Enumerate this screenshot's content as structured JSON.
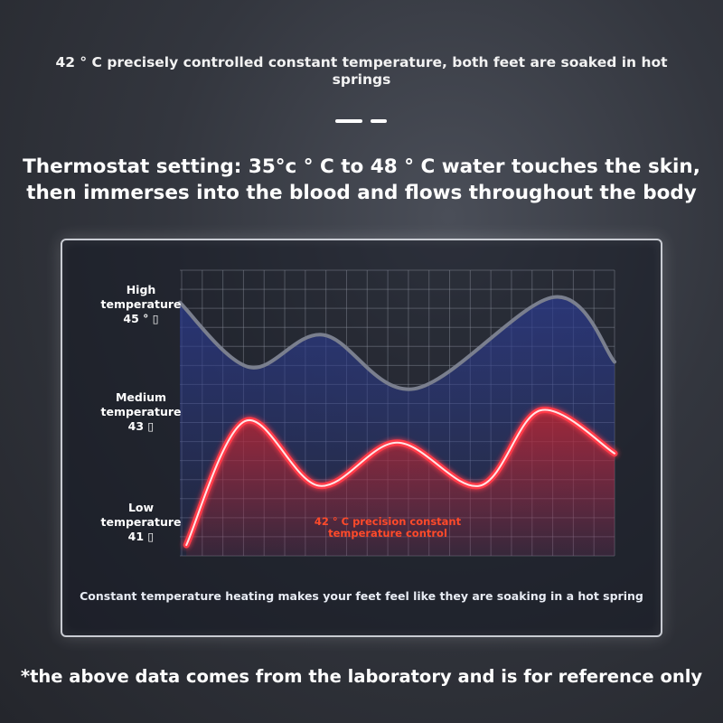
{
  "header": {
    "subtitle": "42 ° C precisely controlled constant temperature, both feet are soaked in hot springs",
    "headline": "Thermostat setting: 35°c ° C to 48 ° C water touches the skin, then immerses into the blood and flows throughout the body"
  },
  "chart_data": {
    "type": "line",
    "y_labels": [
      {
        "lines": [
          "High",
          "temperature",
          "45 ° ▯"
        ]
      },
      {
        "lines": [
          "Medium",
          "temperature",
          "43 ▯"
        ]
      },
      {
        "lines": [
          "Low",
          "temperature",
          "41 ▯"
        ]
      }
    ],
    "ylim": [
      40.5,
      45.8
    ],
    "xlim": [
      0,
      10
    ],
    "grid": true,
    "series": [
      {
        "color": "#7a7f8e",
        "fill": "#2b3a8c",
        "points": [
          [
            0,
            45.2
          ],
          [
            1.6,
            44.0
          ],
          [
            3.3,
            44.6
          ],
          [
            5.4,
            43.6
          ],
          [
            8.6,
            45.3
          ],
          [
            10,
            44.1
          ]
        ]
      },
      {
        "color": "#ff3b4a",
        "fill": "#c8242c",
        "points": [
          [
            0.15,
            40.7
          ],
          [
            1.5,
            43.0
          ],
          [
            3.2,
            41.8
          ],
          [
            5.0,
            42.6
          ],
          [
            6.9,
            41.8
          ],
          [
            8.3,
            43.2
          ],
          [
            10,
            42.4
          ]
        ]
      }
    ],
    "annotation": [
      "42 ° C precision constant",
      "temperature control"
    ],
    "caption": "Constant temperature heating makes your feet feel like they are soaking in a hot spring"
  },
  "footer": {
    "disclaimer": "*the above data comes from the laboratory and is for reference only"
  }
}
